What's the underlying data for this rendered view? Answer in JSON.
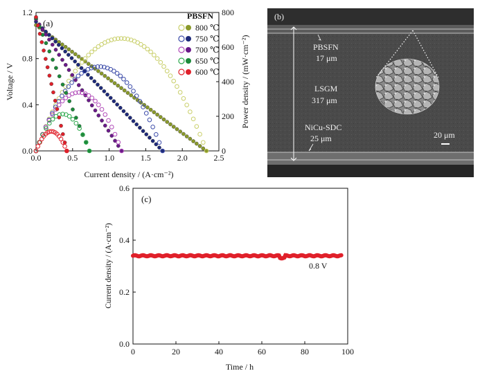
{
  "chart_data": [
    {
      "type": "line",
      "panel_label": "(a)",
      "xlabel": "Current density / (A·cm⁻²)",
      "ylabel": "Voltage / V",
      "y2label": "Power density / (mW·cm⁻²)",
      "xlim": [
        0,
        2.5
      ],
      "ylim": [
        0,
        1.2
      ],
      "y2lim": [
        0,
        800
      ],
      "xticks": [
        "0.0",
        "0.5",
        "1.0",
        "1.5",
        "2.0",
        "2.5"
      ],
      "yticks": [
        "0.0",
        "0.4",
        "0.8",
        "1.2"
      ],
      "y2ticks": [
        "0",
        "200",
        "400",
        "600",
        "800"
      ],
      "legend_title": "PBSFN",
      "legend_position": "top-right",
      "series": [
        {
          "name": "800 ℃",
          "color": "#8a9a2a",
          "open_color": "#c9cf6a",
          "ocv": 1.09,
          "imax": 2.33,
          "pmax": 650
        },
        {
          "name": "750 ℃",
          "color": "#1e2a7a",
          "open_color": "#3a4aa8",
          "ocv": 1.12,
          "imax": 1.73,
          "pmax": 487
        },
        {
          "name": "700 ℃",
          "color": "#6a1a8a",
          "open_color": "#b04ab8",
          "ocv": 1.14,
          "imax": 1.17,
          "pmax": 338
        },
        {
          "name": "650 ℃",
          "color": "#1c8a3a",
          "open_color": "#2aa84a",
          "ocv": 1.15,
          "imax": 0.73,
          "pmax": 213
        },
        {
          "name": "600 ℃",
          "color": "#e0202a",
          "open_color": "#e0202a",
          "ocv": 1.16,
          "imax": 0.42,
          "pmax": 113
        }
      ]
    },
    {
      "type": "line",
      "panel_label": "(c)",
      "xlabel": "Time / h",
      "ylabel": "Current density / (A·cm⁻²)",
      "xlim": [
        0,
        100
      ],
      "ylim": [
        0,
        0.6
      ],
      "xticks": [
        "0",
        "20",
        "40",
        "60",
        "80",
        "100"
      ],
      "yticks": [
        "0.0",
        "0.2",
        "0.4",
        "0.6"
      ],
      "annotation": "0.8 V",
      "series": [
        {
          "color": "#e0202a",
          "x_start": 0,
          "x_end": 97,
          "value": 0.34
        }
      ]
    }
  ],
  "sem": {
    "panel_label": "(b)",
    "layer_top": "PBSFN",
    "layer_top_thickness": "17 μm",
    "layer_mid": "LSGM",
    "layer_mid_thickness": "317 μm",
    "layer_bottom": "NiCu-SDC",
    "layer_bottom_thickness": "25 μm",
    "scale_bar": "20 μm"
  }
}
